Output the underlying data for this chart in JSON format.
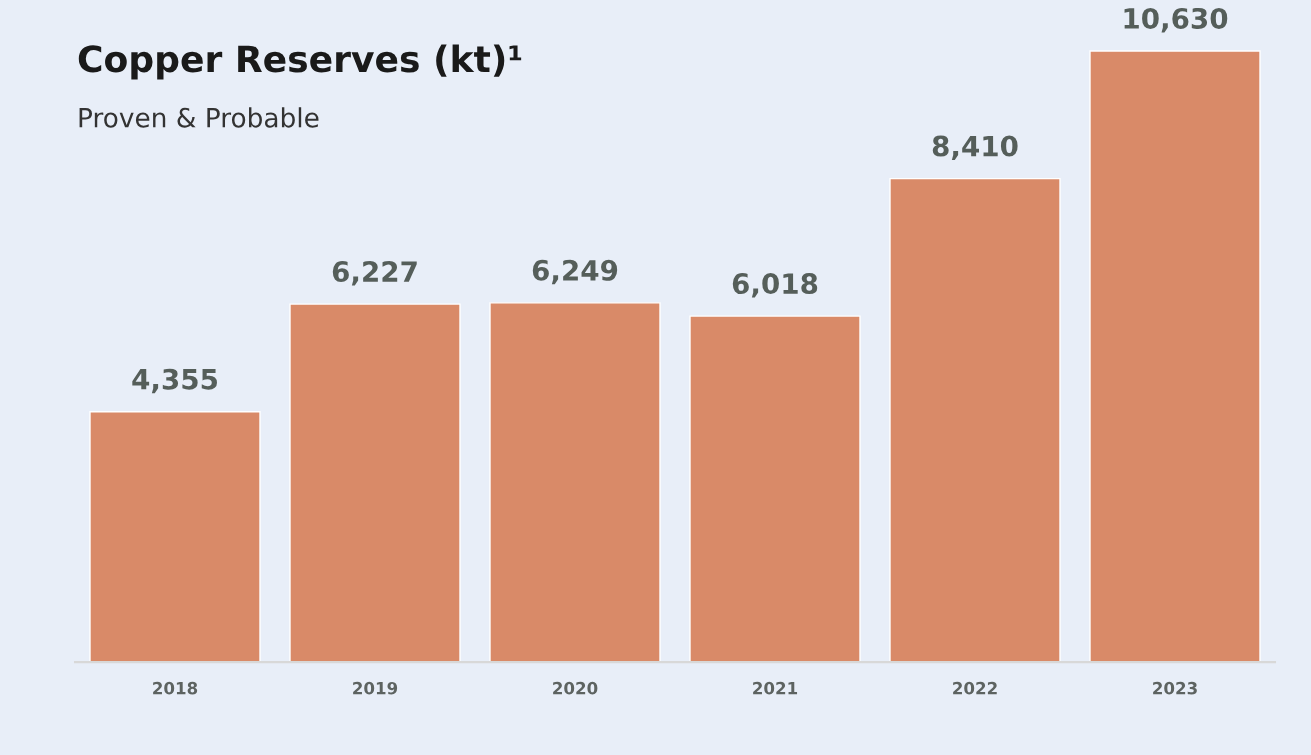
{
  "chart_data": {
    "type": "bar",
    "title": "Copper Reserves (kt)¹",
    "subtitle": "Proven & Probable",
    "categories": [
      "2018",
      "2019",
      "2020",
      "2021",
      "2022",
      "2023"
    ],
    "values": [
      4355,
      6227,
      6249,
      6018,
      8410,
      10630
    ],
    "value_labels": [
      "4,355",
      "6,227",
      "6,249",
      "6,018",
      "8,410",
      "10,630"
    ],
    "color": "#d98a68",
    "grid": false,
    "legend": false
  }
}
